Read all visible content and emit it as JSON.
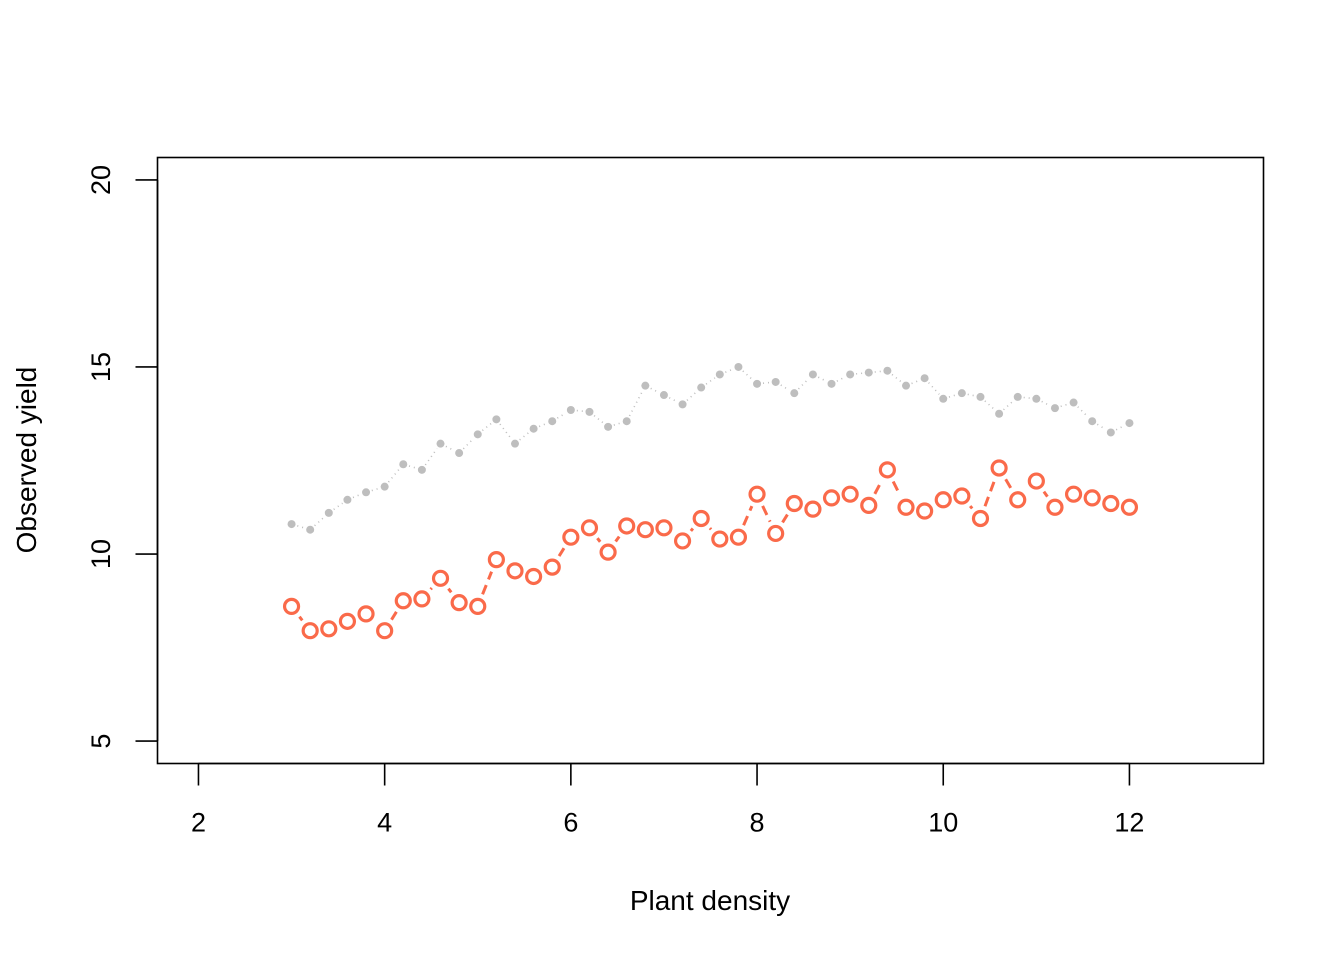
{
  "chart_data": {
    "type": "scatter",
    "title": "",
    "xlabel": "Plant density",
    "ylabel": "Observed yield",
    "xlim": [
      1.56,
      13.44
    ],
    "ylim": [
      4.4,
      20.6
    ],
    "xticks": [
      2,
      4,
      6,
      8,
      10,
      12
    ],
    "yticks": [
      5,
      10,
      15,
      20
    ],
    "grid": false,
    "legend": "none",
    "series": [
      {
        "style": "grey-dots-dotted-line",
        "color": "#bebebe",
        "x": [
          3.0,
          3.2,
          3.4,
          3.6,
          3.8,
          4.0,
          4.2,
          4.4,
          4.6,
          4.8,
          5.0,
          5.2,
          5.4,
          5.6,
          5.8,
          6.0,
          6.2,
          6.4,
          6.6,
          6.8,
          7.0,
          7.2,
          7.4,
          7.6,
          7.8,
          8.0,
          8.2,
          8.4,
          8.6,
          8.8,
          9.0,
          9.2,
          9.4,
          9.6,
          9.8,
          10.0,
          10.2,
          10.4,
          10.6,
          10.8,
          11.0,
          11.2,
          11.4,
          11.6,
          11.8,
          12.0
        ],
        "y": [
          10.8,
          10.65,
          11.1,
          11.45,
          11.65,
          11.8,
          12.4,
          12.25,
          12.95,
          12.7,
          13.2,
          13.6,
          12.95,
          13.35,
          13.55,
          13.85,
          13.8,
          13.4,
          13.55,
          14.5,
          14.25,
          14.0,
          14.45,
          14.8,
          15.0,
          14.55,
          14.6,
          14.3,
          14.8,
          14.55,
          14.8,
          14.85,
          14.9,
          14.5,
          14.7,
          14.15,
          14.3,
          14.2,
          13.75,
          14.2,
          14.15,
          13.9,
          14.05,
          13.55,
          13.25,
          13.5
        ]
      },
      {
        "style": "red-open-circles-dashed-line",
        "color": "#fa6a4a",
        "x": [
          3.0,
          3.2,
          3.4,
          3.6,
          3.8,
          4.0,
          4.2,
          4.4,
          4.6,
          4.8,
          5.0,
          5.2,
          5.4,
          5.6,
          5.8,
          6.0,
          6.2,
          6.4,
          6.6,
          6.8,
          7.0,
          7.2,
          7.4,
          7.6,
          7.8,
          8.0,
          8.2,
          8.4,
          8.6,
          8.8,
          9.0,
          9.2,
          9.4,
          9.6,
          9.8,
          10.0,
          10.2,
          10.4,
          10.6,
          10.8,
          11.0,
          11.2,
          11.4,
          11.6,
          11.8,
          12.0
        ],
        "y": [
          8.6,
          7.95,
          8.0,
          8.2,
          8.4,
          7.95,
          8.75,
          8.8,
          9.35,
          8.7,
          8.6,
          9.85,
          9.55,
          9.4,
          9.65,
          10.45,
          10.7,
          10.05,
          10.75,
          10.65,
          10.7,
          10.35,
          10.95,
          10.4,
          10.45,
          11.6,
          10.55,
          11.35,
          11.2,
          11.5,
          11.6,
          11.3,
          12.25,
          11.25,
          11.15,
          11.45,
          11.55,
          10.95,
          12.3,
          11.45,
          11.95,
          11.25,
          11.6,
          11.5,
          11.35,
          11.25
        ]
      }
    ]
  }
}
